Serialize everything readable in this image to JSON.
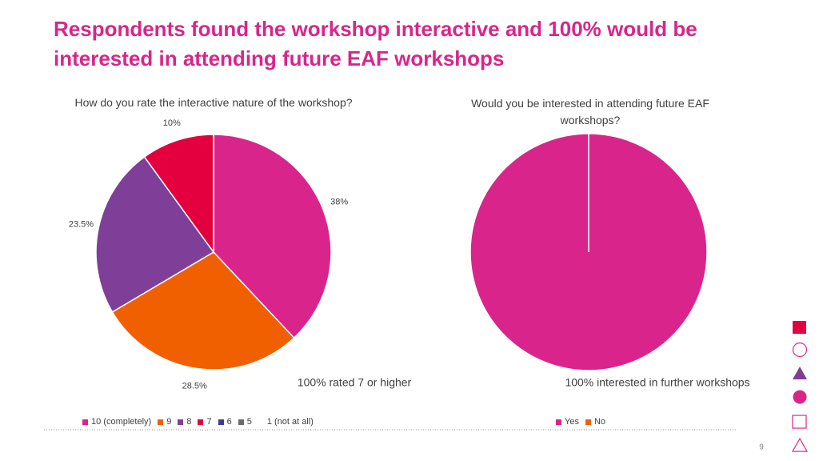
{
  "title": "Respondents found the workshop interactive and 100% would be interested in attending future EAF workshops",
  "page_number": "9",
  "chart_data": [
    {
      "type": "pie",
      "title": "How do you rate the interactive nature of the workshop?",
      "categories": [
        "10 (completely)",
        "9",
        "8",
        "7",
        "6",
        "5",
        "1 (not at all)"
      ],
      "values": [
        38,
        28.5,
        23.5,
        10,
        0,
        0,
        0
      ],
      "value_labels": [
        "38%",
        "28.5%",
        "23.5%",
        "10%",
        null,
        null,
        null
      ],
      "colors": [
        "#d9258b",
        "#f06000",
        "#7f3f98",
        "#e4003f",
        "#3d3d99",
        "#6b6b6b",
        "#ffffff"
      ],
      "annotation": "100% rated 7 or higher"
    },
    {
      "type": "pie",
      "title": "Would you be interested in attending future EAF workshops?",
      "categories": [
        "Yes",
        "No"
      ],
      "values": [
        100,
        0
      ],
      "colors": [
        "#d9258b",
        "#f06000"
      ],
      "annotation": "100% interested in further workshops"
    }
  ]
}
